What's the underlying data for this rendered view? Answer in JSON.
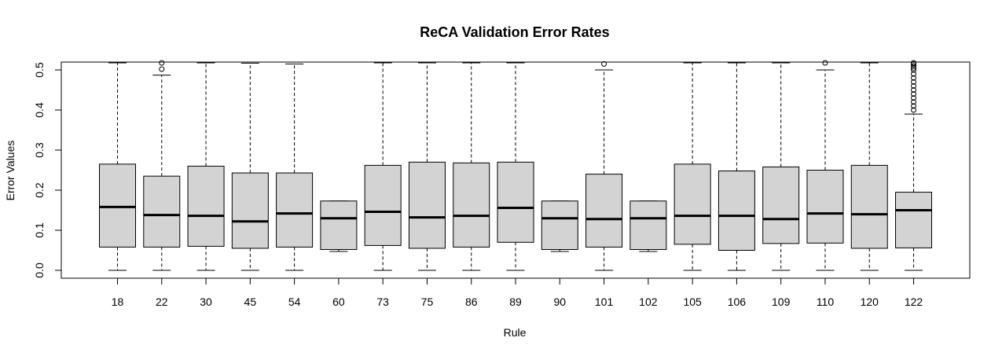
{
  "chart_data": {
    "type": "box",
    "title": "ReCA Validation Error Rates",
    "xlabel": "Rule",
    "ylabel": "Error Values",
    "ylim": [
      0,
      0.52
    ],
    "yticks": [
      "0.0",
      "0.1",
      "0.2",
      "0.3",
      "0.4",
      "0.5"
    ],
    "box_fill": "#d3d3d3",
    "categories": [
      "18",
      "22",
      "30",
      "45",
      "54",
      "60",
      "73",
      "75",
      "86",
      "89",
      "90",
      "101",
      "102",
      "105",
      "106",
      "109",
      "110",
      "120",
      "122"
    ],
    "boxes": [
      {
        "min": 0.0,
        "q1": 0.058,
        "median": 0.158,
        "q3": 0.265,
        "max": 0.52,
        "outliers": []
      },
      {
        "min": 0.0,
        "q1": 0.058,
        "median": 0.138,
        "q3": 0.235,
        "max": 0.487,
        "outliers": [
          0.502,
          0.52
        ]
      },
      {
        "min": 0.0,
        "q1": 0.06,
        "median": 0.136,
        "q3": 0.26,
        "max": 0.52,
        "outliers": []
      },
      {
        "min": 0.0,
        "q1": 0.055,
        "median": 0.122,
        "q3": 0.243,
        "max": 0.517,
        "outliers": []
      },
      {
        "min": 0.0,
        "q1": 0.058,
        "median": 0.142,
        "q3": 0.243,
        "max": 0.515,
        "outliers": []
      },
      {
        "min": 0.047,
        "q1": 0.052,
        "median": 0.13,
        "q3": 0.173,
        "max": 0.173,
        "outliers": []
      },
      {
        "min": 0.0,
        "q1": 0.062,
        "median": 0.146,
        "q3": 0.262,
        "max": 0.52,
        "outliers": []
      },
      {
        "min": 0.0,
        "q1": 0.055,
        "median": 0.132,
        "q3": 0.27,
        "max": 0.52,
        "outliers": []
      },
      {
        "min": 0.0,
        "q1": 0.058,
        "median": 0.136,
        "q3": 0.268,
        "max": 0.52,
        "outliers": []
      },
      {
        "min": 0.0,
        "q1": 0.07,
        "median": 0.156,
        "q3": 0.27,
        "max": 0.52,
        "outliers": []
      },
      {
        "min": 0.047,
        "q1": 0.052,
        "median": 0.13,
        "q3": 0.173,
        "max": 0.173,
        "outliers": []
      },
      {
        "min": 0.0,
        "q1": 0.058,
        "median": 0.128,
        "q3": 0.24,
        "max": 0.5,
        "outliers": [
          0.515
        ]
      },
      {
        "min": 0.047,
        "q1": 0.052,
        "median": 0.13,
        "q3": 0.173,
        "max": 0.173,
        "outliers": []
      },
      {
        "min": 0.0,
        "q1": 0.065,
        "median": 0.136,
        "q3": 0.265,
        "max": 0.52,
        "outliers": []
      },
      {
        "min": 0.0,
        "q1": 0.05,
        "median": 0.136,
        "q3": 0.248,
        "max": 0.52,
        "outliers": []
      },
      {
        "min": 0.0,
        "q1": 0.067,
        "median": 0.128,
        "q3": 0.258,
        "max": 0.52,
        "outliers": []
      },
      {
        "min": 0.0,
        "q1": 0.068,
        "median": 0.142,
        "q3": 0.25,
        "max": 0.5,
        "outliers": [
          0.52
        ]
      },
      {
        "min": 0.0,
        "q1": 0.055,
        "median": 0.14,
        "q3": 0.262,
        "max": 0.52,
        "outliers": []
      },
      {
        "min": 0.0,
        "q1": 0.056,
        "median": 0.15,
        "q3": 0.195,
        "max": 0.39,
        "outliers": [
          0.4,
          0.41,
          0.42,
          0.43,
          0.44,
          0.45,
          0.46,
          0.47,
          0.48,
          0.49,
          0.5,
          0.505,
          0.51,
          0.515,
          0.52
        ]
      }
    ]
  }
}
